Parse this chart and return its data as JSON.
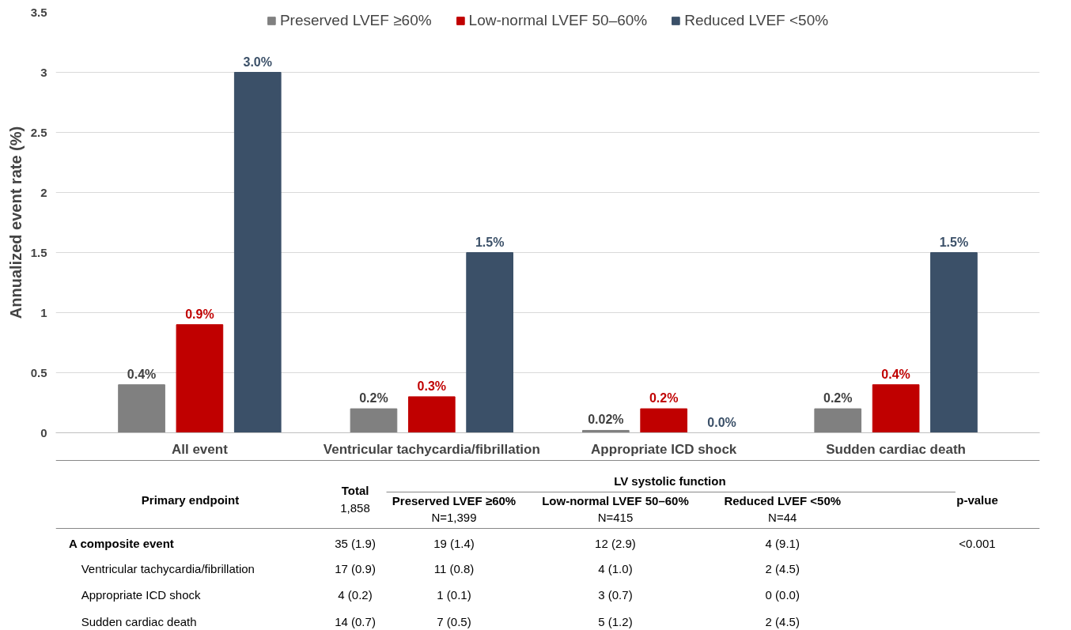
{
  "chart_data": {
    "type": "bar",
    "ylabel": "Annualized event rate (%)",
    "categories": [
      "All event",
      "Ventricular tachycardia/fibrillation",
      "Appropriate ICD shock",
      "Sudden cardiac death"
    ],
    "series": [
      {
        "name": "Preserved LVEF ≥60%",
        "color": "#808080",
        "values": [
          0.4,
          0.2,
          0.02,
          0.2
        ],
        "value_labels": [
          "0.4%",
          "0.2%",
          "0.02%",
          "0.2%"
        ]
      },
      {
        "name": "Low-normal LVEF 50–60%",
        "color": "#c00000",
        "values": [
          0.9,
          0.3,
          0.2,
          0.4
        ],
        "value_labels": [
          "0.9%",
          "0.3%",
          "0.2%",
          "0.4%"
        ]
      },
      {
        "name": "Reduced LVEF <50%",
        "color": "#3b5068",
        "values": [
          3.0,
          1.5,
          0.0,
          1.5
        ],
        "value_labels": [
          "3.0%",
          "1.5%",
          "0.0%",
          "1.5%"
        ]
      }
    ],
    "ylim": [
      0,
      3.5
    ],
    "yticks": [
      0,
      0.5,
      1,
      1.5,
      2,
      2.5,
      3,
      3.5
    ],
    "grid": "y",
    "legend": "top",
    "annotations": [
      "Primary endpoint",
      "Total",
      "1,858",
      "LV systolic function",
      "Preserved LVEF ≥60%",
      "N=1,399",
      "Low-normal LVEF 50–60%",
      "N=415",
      "Reduced LVEF <50%",
      "N=44",
      "p-value",
      "A composite event",
      "35 (1.9)",
      "19 (1.4)",
      "12 (2.9)",
      "4 (9.1)",
      "<0.001",
      "Ventricular tachycardia/fibrillation",
      "17 (0.9)",
      "11 (0.8)",
      "4 (1.0)",
      "2 (4.5)",
      "Appropriate ICD shock",
      "4 (0.2)",
      "1 (0.1)",
      "3 (0.7)",
      "0 (0.0)",
      "Sudden cardiac death",
      "14 (0.7)",
      "7 (0.5)",
      "5 (1.2)",
      "2 (4.5)"
    ]
  }
}
